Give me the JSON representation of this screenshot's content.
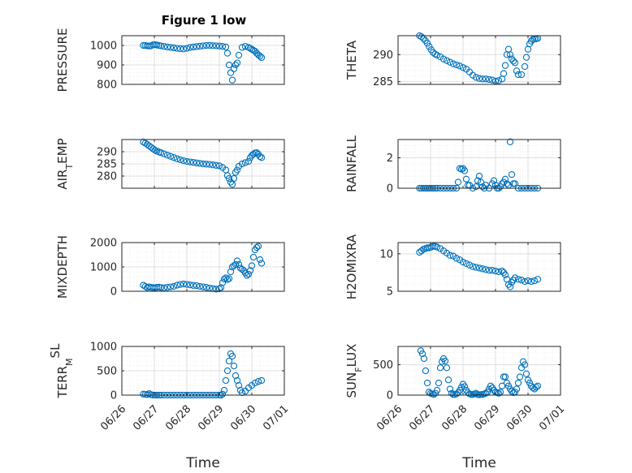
{
  "figure": {
    "title": "Figure 1 low"
  },
  "colors": {
    "marker": "#0072BD",
    "axis": "#262626",
    "grid": "#dfdfdf",
    "minor_grid": "#ececec"
  },
  "chart_data": [
    {
      "type": "scatter",
      "ylabel_main": "PRESSURE",
      "ylabel_sub": "",
      "ylabel_tail": "",
      "title": "Figure 1 low",
      "xlim": [
        0,
        5
      ],
      "ylim": [
        800,
        1050
      ],
      "yticks": [
        800,
        900,
        1000
      ],
      "xticks": [
        0,
        1,
        2,
        3,
        4,
        5
      ],
      "xticklabels": [
        "06/26",
        "06/27",
        "06/28",
        "06/29",
        "06/30",
        "07/01"
      ],
      "show_xticklabels": false,
      "xlabel": "",
      "grid": true,
      "minor_grid": true,
      "x": [
        0.66,
        0.72,
        0.78,
        0.84,
        0.9,
        0.96,
        1.02,
        1.08,
        1.14,
        1.2,
        1.3,
        1.4,
        1.5,
        1.6,
        1.7,
        1.8,
        1.9,
        2.0,
        2.1,
        2.2,
        2.3,
        2.4,
        2.5,
        2.6,
        2.7,
        2.8,
        2.9,
        3.0,
        3.1,
        3.2,
        3.25,
        3.3,
        3.35,
        3.4,
        3.45,
        3.5,
        3.55,
        3.6,
        3.7,
        3.8,
        3.9,
        3.95,
        4.0,
        4.05,
        4.1,
        4.15,
        4.2,
        4.25,
        4.3
      ],
      "y": [
        1000,
        1000,
        998,
        997,
        998,
        1003,
        1004,
        1002,
        1000,
        998,
        995,
        992,
        990,
        988,
        985,
        983,
        982,
        985,
        990,
        992,
        994,
        996,
        998,
        1000,
        1000,
        999,
        998,
        997,
        995,
        992,
        960,
        900,
        860,
        822,
        880,
        900,
        910,
        950,
        990,
        995,
        990,
        985,
        980,
        975,
        970,
        960,
        952,
        945,
        938
      ]
    },
    {
      "type": "scatter",
      "ylabel_main": "THETA",
      "ylabel_sub": "",
      "ylabel_tail": "",
      "title": "",
      "xlim": [
        0,
        5
      ],
      "ylim": [
        284.5,
        293.5
      ],
      "yticks": [
        285,
        290
      ],
      "xticks": [
        0,
        1,
        2,
        3,
        4,
        5
      ],
      "xticklabels": [
        "06/26",
        "06/27",
        "06/28",
        "06/29",
        "06/30",
        "07/01"
      ],
      "show_xticklabels": false,
      "xlabel": "",
      "grid": true,
      "minor_grid": true,
      "x": [
        0.66,
        0.72,
        0.78,
        0.84,
        0.9,
        0.96,
        1.02,
        1.08,
        1.14,
        1.2,
        1.3,
        1.4,
        1.5,
        1.6,
        1.7,
        1.8,
        1.9,
        2.0,
        2.1,
        2.2,
        2.3,
        2.4,
        2.5,
        2.6,
        2.7,
        2.8,
        2.9,
        3.0,
        3.1,
        3.2,
        3.25,
        3.3,
        3.35,
        3.4,
        3.45,
        3.5,
        3.55,
        3.6,
        3.65,
        3.7,
        3.8,
        3.9,
        3.95,
        4.0,
        4.05,
        4.1,
        4.15,
        4.2,
        4.25,
        4.3
      ],
      "y": [
        293.5,
        293.3,
        293.0,
        292.6,
        292.1,
        291.5,
        290.9,
        290.4,
        290.1,
        289.9,
        289.6,
        289.2,
        288.9,
        288.6,
        288.3,
        288.1,
        287.9,
        287.6,
        287.3,
        286.8,
        286.2,
        285.8,
        285.6,
        285.5,
        285.5,
        285.4,
        285.3,
        285.1,
        285.2,
        285.5,
        286.5,
        288.0,
        290.0,
        291.0,
        290.0,
        289.2,
        288.8,
        288.5,
        287.0,
        286.3,
        286.3,
        287.8,
        289.5,
        291.0,
        292.0,
        292.5,
        292.8,
        292.9,
        292.9,
        293.0
      ]
    },
    {
      "type": "scatter",
      "ylabel_main": "AIR",
      "ylabel_sub": "T",
      "ylabel_tail": "EMP",
      "title": "",
      "xlim": [
        0,
        5
      ],
      "ylim": [
        275,
        295
      ],
      "yticks": [
        280,
        285,
        290
      ],
      "xticks": [
        0,
        1,
        2,
        3,
        4,
        5
      ],
      "xticklabels": [
        "06/26",
        "06/27",
        "06/28",
        "06/29",
        "06/30",
        "07/01"
      ],
      "show_xticklabels": false,
      "xlabel": "",
      "grid": true,
      "minor_grid": true,
      "x": [
        0.66,
        0.72,
        0.78,
        0.84,
        0.9,
        0.96,
        1.02,
        1.08,
        1.14,
        1.2,
        1.3,
        1.4,
        1.5,
        1.6,
        1.7,
        1.8,
        1.9,
        2.0,
        2.1,
        2.2,
        2.3,
        2.4,
        2.5,
        2.6,
        2.7,
        2.8,
        2.9,
        3.0,
        3.1,
        3.2,
        3.25,
        3.3,
        3.35,
        3.4,
        3.45,
        3.5,
        3.55,
        3.6,
        3.7,
        3.8,
        3.9,
        3.95,
        4.0,
        4.05,
        4.1,
        4.15,
        4.2,
        4.25,
        4.3
      ],
      "y": [
        294,
        293.5,
        293,
        292.4,
        291.8,
        291.2,
        290.6,
        290.2,
        289.9,
        289.6,
        289.1,
        288.6,
        288.1,
        287.6,
        287.1,
        286.7,
        286.3,
        286.0,
        285.8,
        285.6,
        285.4,
        285.2,
        285.0,
        284.9,
        284.8,
        284.6,
        284.4,
        284.2,
        283.5,
        282.5,
        280.2,
        279.0,
        277.5,
        276.6,
        279.0,
        281.5,
        282.5,
        284.0,
        285.0,
        285.5,
        286.0,
        287.5,
        288.5,
        289.0,
        289.5,
        289.6,
        289.0,
        288.0,
        287.6
      ]
    },
    {
      "type": "scatter",
      "ylabel_main": "RAINFALL",
      "ylabel_sub": "",
      "ylabel_tail": "",
      "title": "",
      "xlim": [
        0,
        5
      ],
      "ylim": [
        0,
        3.2
      ],
      "yticks": [
        0,
        2
      ],
      "xticks": [
        0,
        1,
        2,
        3,
        4,
        5
      ],
      "xticklabels": [
        "06/26",
        "06/27",
        "06/28",
        "06/29",
        "06/30",
        "07/01"
      ],
      "show_xticklabels": false,
      "xlabel": "",
      "grid": true,
      "minor_grid": true,
      "x": [
        0.66,
        0.72,
        0.78,
        0.84,
        0.9,
        0.96,
        1.02,
        1.08,
        1.14,
        1.2,
        1.3,
        1.4,
        1.5,
        1.6,
        1.7,
        1.8,
        1.85,
        1.9,
        1.95,
        2.0,
        2.05,
        2.1,
        2.15,
        2.2,
        2.3,
        2.4,
        2.45,
        2.5,
        2.55,
        2.6,
        2.65,
        2.7,
        2.8,
        2.9,
        2.95,
        3.0,
        3.05,
        3.1,
        3.15,
        3.2,
        3.25,
        3.3,
        3.35,
        3.4,
        3.45,
        3.5,
        3.55,
        3.6,
        3.7,
        3.8,
        3.9,
        4.0,
        4.1,
        4.2,
        4.3
      ],
      "y": [
        0,
        0,
        0,
        0,
        0,
        0,
        0,
        0,
        0,
        0,
        0,
        0,
        0,
        0,
        0,
        0,
        0.4,
        1.3,
        1.25,
        1.3,
        1.15,
        0.6,
        0.2,
        0.2,
        0,
        0.1,
        0.5,
        0.8,
        0.4,
        0.1,
        0,
        0.2,
        0,
        0.3,
        0.5,
        0.2,
        0,
        0,
        0.1,
        0.3,
        0.4,
        0.6,
        0.3,
        0.2,
        3.05,
        0.9,
        0.3,
        0.3,
        0,
        0,
        0,
        0,
        0,
        0,
        0
      ]
    },
    {
      "type": "scatter",
      "ylabel_main": "MIXDEPTH",
      "ylabel_sub": "",
      "ylabel_tail": "",
      "title": "",
      "xlim": [
        0,
        5
      ],
      "ylim": [
        0,
        2000
      ],
      "yticks": [
        0,
        1000,
        2000
      ],
      "xticks": [
        0,
        1,
        2,
        3,
        4,
        5
      ],
      "xticklabels": [
        "06/26",
        "06/27",
        "06/28",
        "06/29",
        "06/30",
        "07/01"
      ],
      "show_xticklabels": false,
      "xlabel": "",
      "grid": true,
      "minor_grid": true,
      "x": [
        0.66,
        0.72,
        0.78,
        0.84,
        0.9,
        0.96,
        1.02,
        1.08,
        1.14,
        1.2,
        1.3,
        1.4,
        1.5,
        1.6,
        1.7,
        1.8,
        1.9,
        2.0,
        2.1,
        2.2,
        2.3,
        2.4,
        2.5,
        2.6,
        2.7,
        2.8,
        2.9,
        3.0,
        3.05,
        3.1,
        3.15,
        3.2,
        3.25,
        3.3,
        3.35,
        3.4,
        3.45,
        3.5,
        3.55,
        3.6,
        3.65,
        3.7,
        3.75,
        3.8,
        3.85,
        3.9,
        3.95,
        4.0,
        4.05,
        4.1,
        4.15,
        4.2,
        4.25,
        4.3
      ],
      "y": [
        250,
        200,
        150,
        180,
        160,
        150,
        140,
        160,
        170,
        150,
        140,
        160,
        180,
        200,
        250,
        280,
        300,
        280,
        260,
        240,
        230,
        200,
        180,
        160,
        130,
        110,
        90,
        100,
        150,
        350,
        500,
        550,
        480,
        520,
        800,
        1000,
        1050,
        1100,
        1250,
        1100,
        950,
        900,
        850,
        750,
        650,
        700,
        850,
        1050,
        1400,
        1700,
        1800,
        1850,
        1300,
        1150
      ]
    },
    {
      "type": "scatter",
      "ylabel_main": "H2OMIXRA",
      "ylabel_sub": "",
      "ylabel_tail": "",
      "title": "",
      "xlim": [
        0,
        5
      ],
      "ylim": [
        5,
        11.5
      ],
      "yticks": [
        5,
        10
      ],
      "xticks": [
        0,
        1,
        2,
        3,
        4,
        5
      ],
      "xticklabels": [
        "06/26",
        "06/27",
        "06/28",
        "06/29",
        "06/30",
        "07/01"
      ],
      "show_xticklabels": false,
      "xlabel": "",
      "grid": true,
      "minor_grid": true,
      "x": [
        0.66,
        0.72,
        0.78,
        0.84,
        0.9,
        0.96,
        1.02,
        1.08,
        1.14,
        1.2,
        1.3,
        1.4,
        1.5,
        1.6,
        1.7,
        1.8,
        1.9,
        2.0,
        2.1,
        2.2,
        2.3,
        2.4,
        2.5,
        2.6,
        2.7,
        2.8,
        2.9,
        3.0,
        3.1,
        3.2,
        3.25,
        3.3,
        3.35,
        3.4,
        3.45,
        3.5,
        3.55,
        3.6,
        3.7,
        3.8,
        3.9,
        4.0,
        4.1,
        4.2,
        4.3
      ],
      "y": [
        10.2,
        10.4,
        10.6,
        10.7,
        10.8,
        10.8,
        10.9,
        11.0,
        11.0,
        10.9,
        10.7,
        10.4,
        10.1,
        9.8,
        9.7,
        9.4,
        9.2,
        8.9,
        8.7,
        8.5,
        8.3,
        8.2,
        8.1,
        8.0,
        7.9,
        7.8,
        7.8,
        7.7,
        7.6,
        7.7,
        7.5,
        7.2,
        6.6,
        5.9,
        5.6,
        6.2,
        6.5,
        6.8,
        6.6,
        6.5,
        6.3,
        6.4,
        6.3,
        6.4,
        6.6
      ]
    },
    {
      "type": "scatter",
      "ylabel_main": "TERR",
      "ylabel_sub": "M",
      "ylabel_sup": "SL",
      "title": "",
      "xlim": [
        0,
        5
      ],
      "ylim": [
        0,
        1000
      ],
      "yticks": [
        0,
        500,
        1000
      ],
      "xticks": [
        0,
        1,
        2,
        3,
        4,
        5
      ],
      "xticklabels": [
        "06/26",
        "06/27",
        "06/28",
        "06/29",
        "06/30",
        "07/01"
      ],
      "show_xticklabels": true,
      "xlabel": "Time",
      "grid": true,
      "minor_grid": true,
      "x": [
        0.66,
        0.72,
        0.78,
        0.84,
        0.9,
        0.96,
        1.02,
        1.08,
        1.14,
        1.2,
        1.3,
        1.4,
        1.5,
        1.6,
        1.7,
        1.8,
        1.9,
        2.0,
        2.1,
        2.2,
        2.3,
        2.4,
        2.5,
        2.6,
        2.7,
        2.8,
        2.9,
        3.0,
        3.05,
        3.1,
        3.15,
        3.2,
        3.25,
        3.3,
        3.35,
        3.4,
        3.45,
        3.5,
        3.55,
        3.6,
        3.65,
        3.7,
        3.8,
        3.9,
        4.0,
        4.1,
        4.2,
        4.3
      ],
      "y": [
        20,
        15,
        10,
        30,
        10,
        0,
        0,
        0,
        0,
        0,
        0,
        0,
        0,
        0,
        0,
        0,
        0,
        0,
        0,
        0,
        0,
        0,
        0,
        0,
        0,
        0,
        0,
        0,
        0,
        20,
        100,
        300,
        500,
        700,
        850,
        800,
        600,
        400,
        300,
        200,
        100,
        50,
        80,
        150,
        200,
        250,
        280,
        300
      ]
    },
    {
      "type": "scatter",
      "ylabel_main": "SUN",
      "ylabel_sub": "F",
      "ylabel_tail": "LUX",
      "title": "",
      "xlim": [
        0,
        5
      ],
      "ylim": [
        0,
        800
      ],
      "yticks": [
        0,
        500
      ],
      "xticks": [
        0,
        1,
        2,
        3,
        4,
        5
      ],
      "xticklabels": [
        "06/26",
        "06/27",
        "06/28",
        "06/29",
        "06/30",
        "07/01"
      ],
      "show_xticklabels": true,
      "xlabel": "Time",
      "grid": true,
      "minor_grid": true,
      "x": [
        0.7,
        0.75,
        0.8,
        0.85,
        0.9,
        0.95,
        1.0,
        1.05,
        1.1,
        1.15,
        1.2,
        1.25,
        1.3,
        1.35,
        1.4,
        1.45,
        1.5,
        1.55,
        1.6,
        1.65,
        1.7,
        1.75,
        1.8,
        1.85,
        1.9,
        1.95,
        2.0,
        2.05,
        2.1,
        2.15,
        2.2,
        2.25,
        2.3,
        2.35,
        2.4,
        2.45,
        2.5,
        2.55,
        2.6,
        2.65,
        2.7,
        2.75,
        2.8,
        2.85,
        2.9,
        2.95,
        3.0,
        3.05,
        3.1,
        3.15,
        3.2,
        3.25,
        3.3,
        3.35,
        3.4,
        3.45,
        3.5,
        3.55,
        3.6,
        3.65,
        3.7,
        3.75,
        3.8,
        3.85,
        3.9,
        3.95,
        4.0,
        4.05,
        4.1,
        4.15,
        4.2,
        4.25,
        4.3
      ],
      "y": [
        730,
        680,
        600,
        400,
        200,
        50,
        30,
        20,
        10,
        30,
        80,
        200,
        450,
        550,
        600,
        560,
        450,
        250,
        100,
        30,
        10,
        10,
        20,
        40,
        80,
        130,
        180,
        140,
        80,
        40,
        20,
        10,
        10,
        20,
        30,
        10,
        5,
        10,
        10,
        20,
        30,
        50,
        100,
        150,
        120,
        80,
        50,
        40,
        30,
        50,
        150,
        300,
        300,
        200,
        150,
        100,
        60,
        40,
        50,
        100,
        200,
        300,
        450,
        550,
        500,
        350,
        250,
        200,
        150,
        120,
        100,
        130,
        150
      ]
    }
  ]
}
